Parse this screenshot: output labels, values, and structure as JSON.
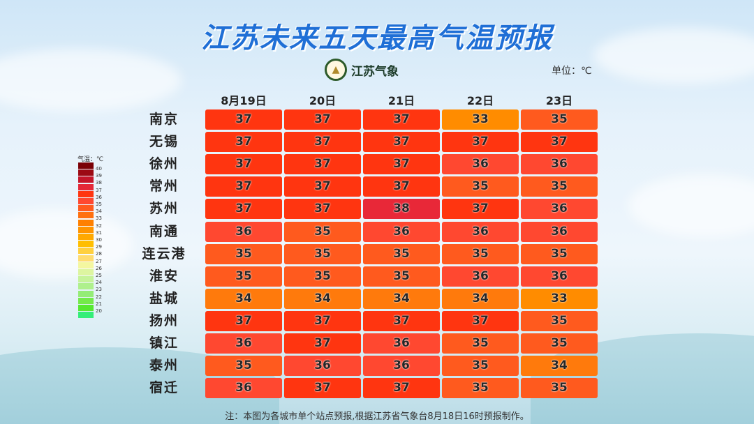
{
  "title": "江苏未来五天最高气温预报",
  "logo_text": "江苏气象",
  "unit": "单位：℃",
  "note": "注：本图为各城市单个站点预报,根据江苏省气象台8月18日16时预报制作。",
  "chart_data": {
    "type": "heatmap",
    "title": "江苏未来五天最高气温预报",
    "columns": [
      "8月19日",
      "20日",
      "21日",
      "22日",
      "23日"
    ],
    "rows": [
      "南京",
      "无锡",
      "徐州",
      "常州",
      "苏州",
      "南通",
      "连云港",
      "淮安",
      "盐城",
      "扬州",
      "镇江",
      "泰州",
      "宿迁"
    ],
    "values": [
      [
        37,
        37,
        37,
        33,
        35
      ],
      [
        37,
        37,
        37,
        37,
        37
      ],
      [
        37,
        37,
        37,
        36,
        36
      ],
      [
        37,
        37,
        37,
        35,
        35
      ],
      [
        37,
        37,
        38,
        37,
        36
      ],
      [
        36,
        35,
        36,
        36,
        36
      ],
      [
        35,
        35,
        35,
        35,
        35
      ],
      [
        35,
        35,
        35,
        36,
        36
      ],
      [
        34,
        34,
        34,
        34,
        33
      ],
      [
        37,
        37,
        37,
        37,
        35
      ],
      [
        36,
        37,
        36,
        35,
        35
      ],
      [
        35,
        36,
        36,
        35,
        34
      ],
      [
        36,
        37,
        37,
        35,
        35
      ]
    ],
    "legend": {
      "title": "气温：℃",
      "labels": [
        "40",
        "39",
        "38",
        "37",
        "36",
        "35",
        "34",
        "33",
        "32",
        "31",
        "30",
        "29",
        "28",
        "27",
        "26",
        "25",
        "24",
        "23",
        "22",
        "21",
        "20"
      ],
      "colors": [
        "#7a0006",
        "#9c0a14",
        "#c4162a",
        "#e42838",
        "#ff3510",
        "#ff4830",
        "#ff5a1e",
        "#ff700e",
        "#ff8000",
        "#ff9400",
        "#ffa800",
        "#ffbe00",
        "#ffd040",
        "#ffdc70",
        "#f4f7a0",
        "#ddf5a0",
        "#c6f39a",
        "#aef08c",
        "#94ec76",
        "#74ea4a",
        "#56e830",
        "#34ee78"
      ]
    },
    "cell_colors": {
      "33": "#ff8c00",
      "34": "#ff7a0c",
      "35": "#ff5a1e",
      "36": "#ff4830",
      "37": "#ff3510",
      "38": "#e82838"
    }
  }
}
